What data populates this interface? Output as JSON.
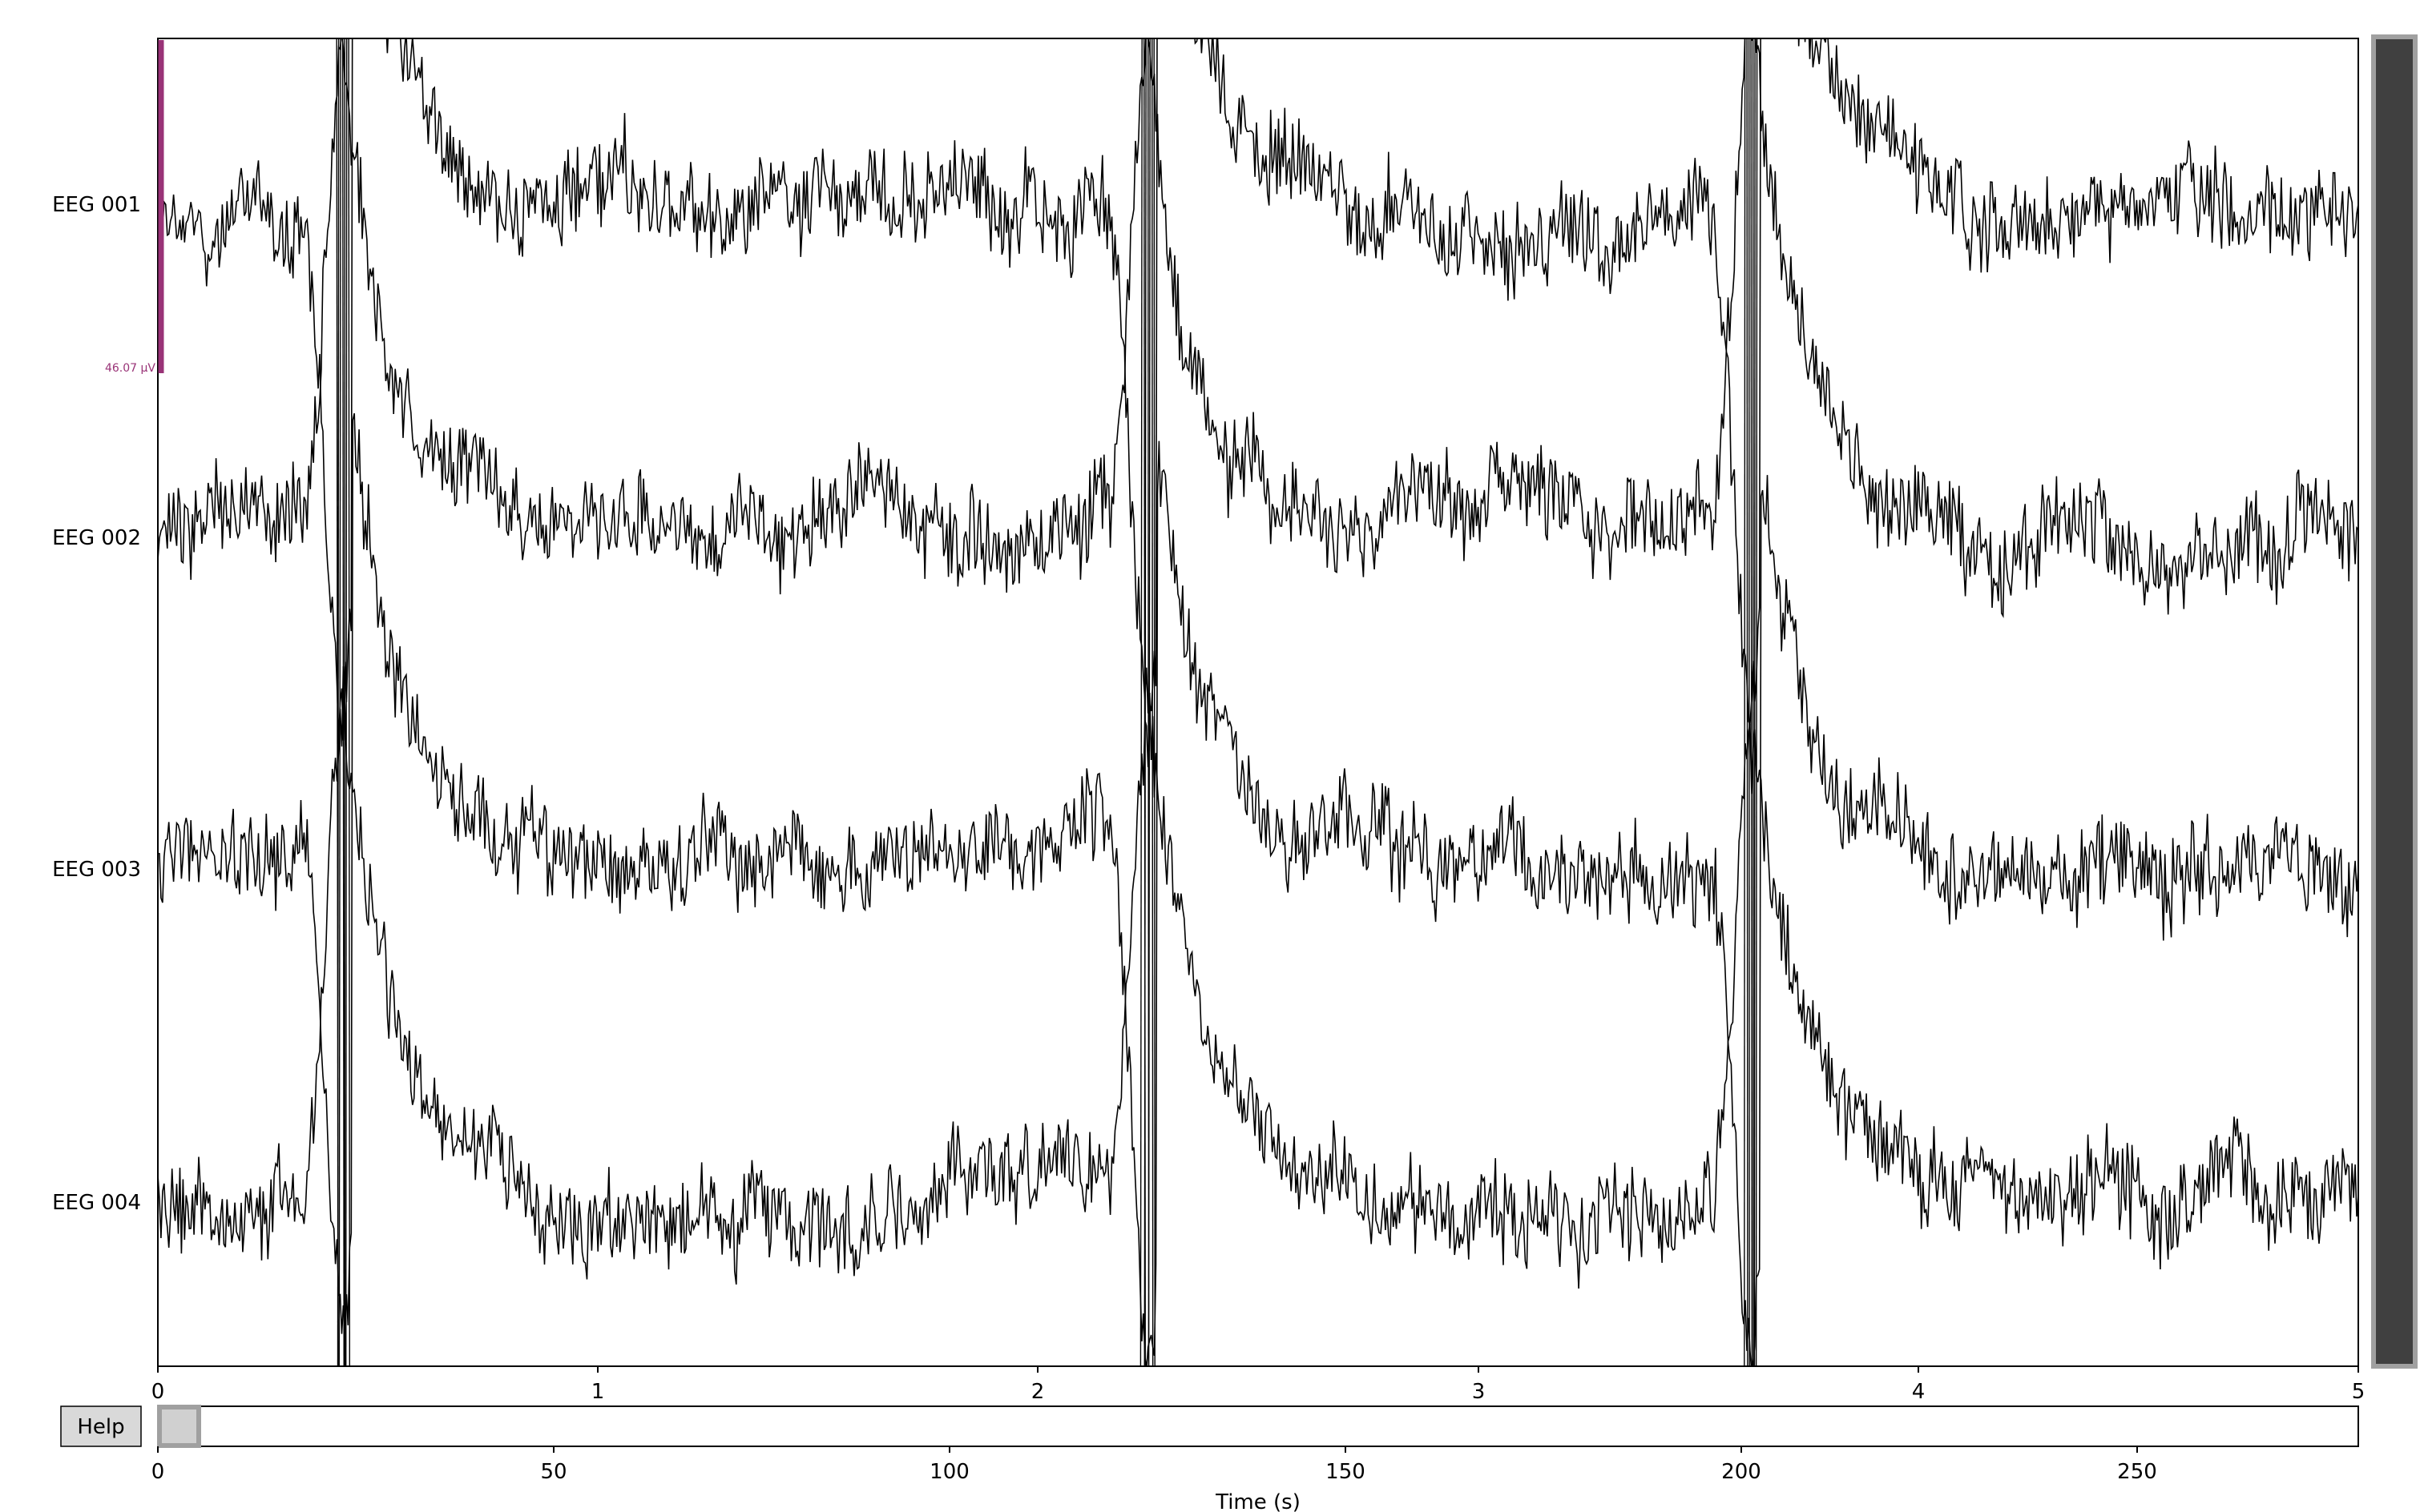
{
  "channels": [
    {
      "name": "EEG 001"
    },
    {
      "name": "EEG 002"
    },
    {
      "name": "EEG 003"
    },
    {
      "name": "EEG 004"
    }
  ],
  "scale_bar": {
    "label": "46.07 µV",
    "color": "#993377"
  },
  "main_axis": {
    "xlim": [
      0,
      5
    ],
    "ticks": [
      "0",
      "1",
      "2",
      "3",
      "4",
      "5"
    ]
  },
  "time_axis": {
    "title": "Time (s)",
    "xlim": [
      0,
      278
    ],
    "ticks": [
      "0",
      "50",
      "100",
      "150",
      "200",
      "250"
    ],
    "view_window": [
      0,
      5
    ]
  },
  "help_button": {
    "label": "Help"
  },
  "colors": {
    "trace": "#000000",
    "scrollbar_thumb": "#404040",
    "scrollbar_border": "#a0a0a0",
    "button_bg": "#d9d9d9"
  }
}
